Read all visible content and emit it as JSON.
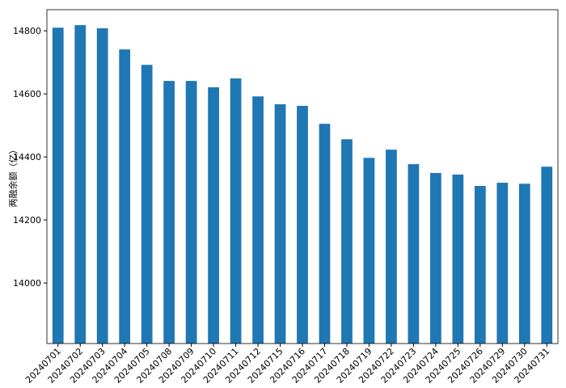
{
  "chart_data": {
    "type": "bar",
    "y_label": "两融余额（亿）",
    "categories": [
      "20240701",
      "20240702",
      "20240703",
      "20240704",
      "20240705",
      "20240708",
      "20240709",
      "20240710",
      "20240711",
      "20240712",
      "20240715",
      "20240716",
      "20240717",
      "20240718",
      "20240719",
      "20240722",
      "20240723",
      "20240724",
      "20240725",
      "20240726",
      "20240729",
      "20240730",
      "20240731"
    ],
    "values": [
      14810,
      14818,
      14808,
      14741,
      14692,
      14641,
      14641,
      14621,
      14649,
      14592,
      14567,
      14562,
      14505,
      14456,
      14397,
      14423,
      14377,
      14349,
      14344,
      14308,
      14318,
      14315,
      14369
    ],
    "color": "#1f77b4",
    "ylim": [
      13808,
      14867
    ],
    "yticks": [
      14000,
      14200,
      14400,
      14600,
      14800
    ],
    "grid": false
  }
}
